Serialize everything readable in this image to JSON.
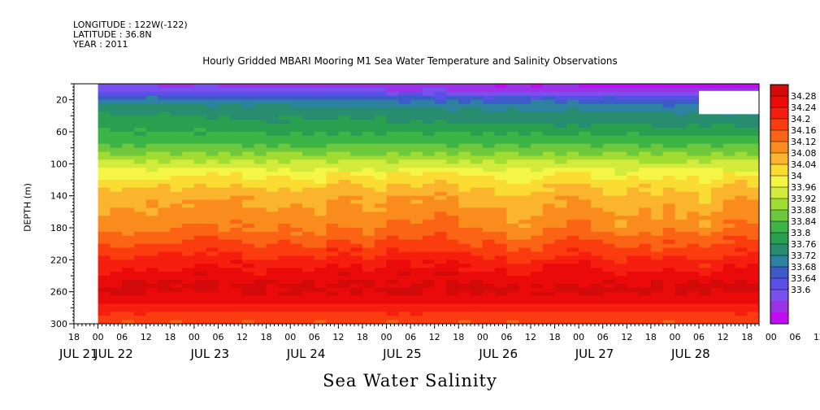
{
  "meta": {
    "longitude": "LONGITUDE : 122W(-122)",
    "latitude": "LATITUDE : 36.8N",
    "year": "YEAR : 2011"
  },
  "chart_data": {
    "type": "heatmap",
    "title": "Hourly Gridded MBARI Mooring M1 Sea Water Temperature and Salinity Observations",
    "xlabel": "Sea Water Salinity",
    "ylabel": "DEPTH (m)",
    "x_axis": {
      "unit": "hours",
      "start": "2011-07-21T18:00",
      "end": "2011-07-28T21:00",
      "hour_ticks": [
        "18",
        "00",
        "06",
        "12",
        "18",
        "00",
        "06",
        "12",
        "18",
        "00",
        "06",
        "12",
        "18",
        "00",
        "06",
        "12",
        "18",
        "00",
        "06",
        "12",
        "18",
        "00",
        "06",
        "12",
        "18",
        "00",
        "06",
        "12",
        "18",
        "00",
        "06",
        "12",
        "18"
      ],
      "day_labels": [
        "JUL 21",
        "JUL 22",
        "JUL 23",
        "JUL 24",
        "JUL 25",
        "JUL 26",
        "JUL 27",
        "JUL 28"
      ]
    },
    "y_axis": {
      "reversed": true,
      "ylim": [
        0,
        300
      ],
      "ticks": [
        "20",
        "60",
        "100",
        "140",
        "180",
        "220",
        "260",
        "300"
      ]
    },
    "data_start": "2011-07-22T00:00",
    "colorbar": {
      "labels": [
        "34.28",
        "34.24",
        "34.2",
        "34.16",
        "34.12",
        "34.08",
        "34.04",
        "34",
        "33.96",
        "33.92",
        "33.88",
        "33.84",
        "33.8",
        "33.76",
        "33.72",
        "33.68",
        "33.64",
        "33.6"
      ],
      "colors": [
        "#d20a0a",
        "#eb0a0a",
        "#f51e0f",
        "#fa3c0f",
        "#fa6414",
        "#fa8c1e",
        "#fab42d",
        "#fadc32",
        "#f5f546",
        "#d2eb3c",
        "#a0dc32",
        "#6ec83c",
        "#3cb446",
        "#28a050",
        "#288c6e",
        "#2d82a0",
        "#3c5ac8",
        "#5a50e6",
        "#7850f0",
        "#9c32e6",
        "#c00cf0"
      ],
      "range": [
        33.6,
        34.28
      ]
    },
    "profile": [
      [
        0,
        33.66
      ],
      [
        10,
        33.7
      ],
      [
        20,
        33.78
      ],
      [
        30,
        33.81
      ],
      [
        40,
        33.83
      ],
      [
        50,
        33.84
      ],
      [
        60,
        33.86
      ],
      [
        70,
        33.88
      ],
      [
        80,
        33.9
      ],
      [
        90,
        33.93
      ],
      [
        100,
        33.97
      ],
      [
        110,
        34.0
      ],
      [
        120,
        34.03
      ],
      [
        130,
        34.05
      ],
      [
        140,
        34.07
      ],
      [
        150,
        34.08
      ],
      [
        160,
        34.09
      ],
      [
        170,
        34.1
      ],
      [
        180,
        34.11
      ],
      [
        190,
        34.13
      ],
      [
        200,
        34.15
      ],
      [
        210,
        34.17
      ],
      [
        220,
        34.19
      ],
      [
        230,
        34.21
      ],
      [
        240,
        34.23
      ],
      [
        250,
        34.25
      ],
      [
        260,
        34.25
      ],
      [
        270,
        34.23
      ],
      [
        280,
        34.2
      ],
      [
        290,
        34.17
      ],
      [
        300,
        34.15
      ]
    ]
  }
}
